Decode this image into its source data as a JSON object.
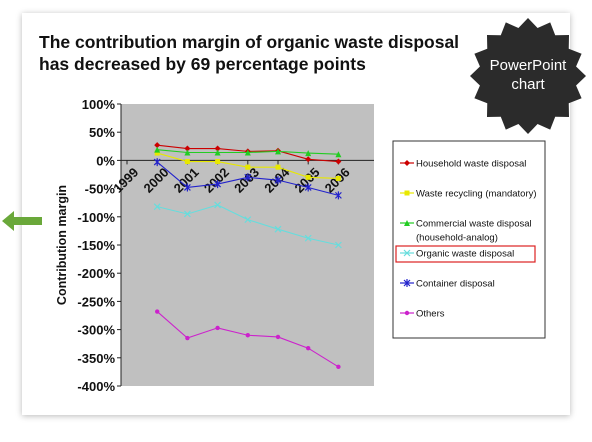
{
  "slide": {
    "title_line1": "The contribution margin of organic waste disposal",
    "title_line2": "has decreased by 69 percentage points",
    "badge_line1": "PowerPoint",
    "badge_line2": "chart",
    "colors": {
      "accent_arrow": "#6aa83a",
      "badge_fill": "#2b2b2b",
      "plot_bg": "#c0c0c0"
    }
  },
  "chart_data": {
    "type": "line",
    "title": "",
    "xlabel": "",
    "ylabel": "Contribution margin",
    "x": [
      "1999",
      "2000",
      "2001",
      "2002",
      "2003",
      "2004",
      "2005",
      "2006"
    ],
    "ylim": [
      -400,
      100
    ],
    "yticks": [
      "100%",
      "50%",
      "0%",
      "-50%",
      "-100%",
      "-150%",
      "-200%",
      "-250%",
      "-300%",
      "-350%",
      "-400%"
    ],
    "grid": false,
    "legend_position": "right",
    "highlighted_series": "Organic waste disposal",
    "series": [
      {
        "name": "Household waste disposal",
        "color": "#cc0000",
        "marker": "diamond",
        "values": [
          null,
          27,
          21,
          21,
          16,
          17,
          2,
          -2
        ]
      },
      {
        "name": "Waste recycling (mandatory)",
        "color": "#e8e800",
        "marker": "square",
        "values": [
          null,
          13,
          -2,
          -2,
          -12,
          -12,
          -30,
          -32
        ]
      },
      {
        "name": "Commercial waste disposal (household-analog)",
        "color": "#22cc22",
        "marker": "triangle",
        "values": [
          null,
          19,
          14,
          14,
          14,
          16,
          13,
          11
        ]
      },
      {
        "name": "Organic waste disposal",
        "color": "#66dddd",
        "marker": "x",
        "values": [
          null,
          -82,
          -95,
          -79,
          -105,
          -122,
          -138,
          -150
        ]
      },
      {
        "name": "Container disposal",
        "color": "#2222cc",
        "marker": "star",
        "values": [
          null,
          -3,
          -48,
          -42,
          -30,
          -35,
          -48,
          -62
        ]
      },
      {
        "name": "Others",
        "color": "#cc22cc",
        "marker": "circle",
        "values": [
          null,
          -268,
          -315,
          -297,
          -310,
          -313,
          -333,
          -366
        ]
      }
    ]
  }
}
